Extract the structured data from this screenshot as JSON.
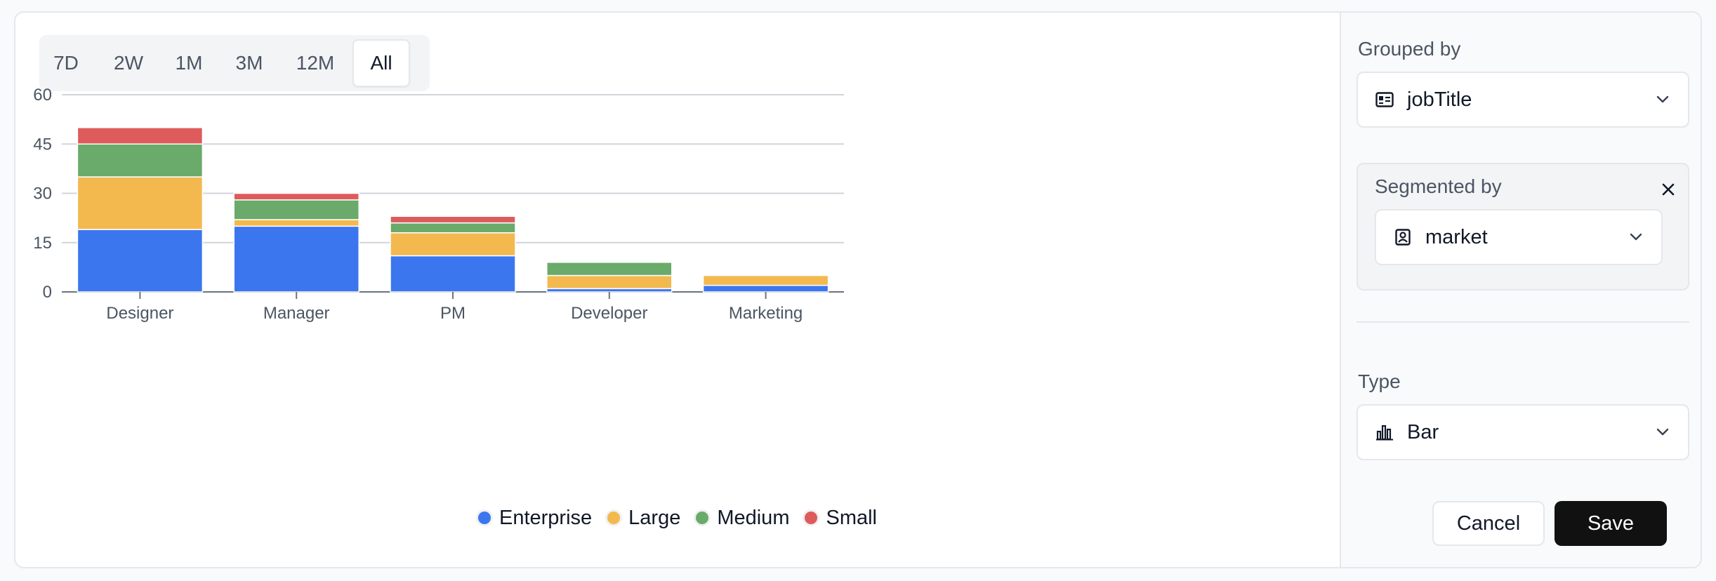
{
  "range_tabs": {
    "items": [
      "7D",
      "2W",
      "1M",
      "3M",
      "12M",
      "All"
    ],
    "active": "All"
  },
  "chart_data": {
    "type": "bar",
    "stacked": true,
    "categories": [
      "Designer",
      "Manager",
      "PM",
      "Developer",
      "Marketing"
    ],
    "series": [
      {
        "name": "Enterprise",
        "color": "#3b76ee",
        "values": [
          19,
          20,
          11,
          1,
          2
        ]
      },
      {
        "name": "Large",
        "color": "#f3b94f",
        "values": [
          16,
          2,
          7,
          4,
          3
        ]
      },
      {
        "name": "Medium",
        "color": "#6aaa6a",
        "values": [
          10,
          6,
          3,
          4,
          0
        ]
      },
      {
        "name": "Small",
        "color": "#dd5b5b",
        "values": [
          5,
          2,
          2,
          0,
          0
        ]
      }
    ],
    "yticks": [
      0,
      15,
      30,
      45,
      60
    ],
    "ylim": [
      0,
      60
    ],
    "grid": true,
    "legend_position": "bottom"
  },
  "sidebar": {
    "grouped_by": {
      "label": "Grouped by",
      "value": "jobTitle",
      "icon": "id-card-icon"
    },
    "segmented_by": {
      "label": "Segmented by",
      "value": "market",
      "icon": "contact-icon"
    },
    "type": {
      "label": "Type",
      "value": "Bar",
      "icon": "bar-chart-icon"
    },
    "cancel_label": "Cancel",
    "save_label": "Save"
  }
}
